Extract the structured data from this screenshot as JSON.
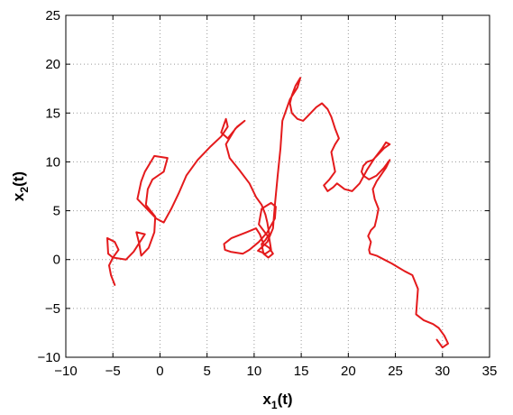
{
  "chart_data": {
    "type": "line",
    "title": "",
    "xlabel": "x",
    "xlabel_subscript": "1",
    "xlabel_suffix": "(t)",
    "ylabel": "x",
    "ylabel_subscript": "2",
    "ylabel_suffix": "(t)",
    "xlim": [
      -10,
      35
    ],
    "ylim": [
      -10,
      25
    ],
    "xticks": [
      -10,
      -5,
      0,
      5,
      10,
      15,
      20,
      25,
      30,
      35
    ],
    "yticks": [
      -10,
      -5,
      0,
      5,
      10,
      15,
      20,
      25
    ],
    "grid": true,
    "line_color": "#e41a1c",
    "series": [
      {
        "x": [
          -4.8,
          -5.2,
          -5.4,
          -5.0,
          -4.4,
          -4.8,
          -5.6,
          -5.5,
          -5.0,
          -3.6,
          -2.8,
          -1.6,
          -2.5,
          -2.2,
          -2.0,
          -1.2,
          -0.6,
          -0.5,
          -1.5,
          -1.3,
          -0.8,
          0.4,
          0.8,
          -0.6,
          -1.6,
          -2.0,
          -2.4,
          -1.2,
          -0.4,
          0.4,
          1.2,
          2.0,
          2.8,
          4.0,
          5.4,
          6.5,
          7.2,
          7.0,
          6.5,
          7.2,
          8.2,
          9.0,
          8.0,
          7.0,
          7.4,
          8.4,
          9.5,
          10.2,
          10.8,
          11.2,
          11.4,
          11.6,
          11.2,
          10.8,
          11.0,
          11.5,
          12.0,
          11.6,
          11.0,
          10.6,
          10.2,
          9.2,
          7.6,
          6.8,
          6.9,
          7.5,
          8.8,
          9.5,
          10.5,
          11.4,
          12.2,
          12.3,
          11.8,
          10.8,
          10.5,
          11.6,
          11.8,
          11.2,
          10.4,
          11.4,
          12.0,
          12.2,
          12.5,
          12.8,
          13.0,
          13.8,
          14.6,
          14.9,
          14.4,
          14.0,
          13.8,
          14.0,
          14.6,
          15.2,
          15.8,
          16.6,
          17.2,
          17.8,
          18.2,
          18.6,
          19.0,
          18.6,
          18.2,
          18.4,
          18.6,
          18.0,
          17.4,
          17.8,
          18.4,
          18.8,
          19.6,
          20.4,
          21.2,
          22.0,
          22.8,
          23.6,
          24.0,
          24.4,
          23.8,
          23.2,
          22.6,
          22.0,
          21.6,
          21.4,
          21.6,
          22.2,
          23.0,
          23.8,
          24.4,
          24.0,
          23.0,
          22.6,
          22.8,
          23.2,
          23.0,
          22.8,
          22.4,
          22.1,
          22.4,
          22.2,
          22.3,
          23.0,
          23.8,
          24.6,
          25.3,
          26.0,
          26.8,
          27.4,
          27.2,
          28.0,
          29.0,
          29.6,
          30.2,
          30.6,
          30.0,
          29.4
        ],
        "y": [
          -2.6,
          -1.6,
          -0.6,
          0.2,
          1.0,
          1.8,
          2.2,
          0.6,
          0.2,
          0.0,
          0.8,
          2.6,
          2.8,
          1.6,
          0.4,
          1.2,
          2.8,
          4.4,
          5.6,
          7.2,
          8.2,
          9.0,
          10.4,
          10.6,
          9.0,
          8.0,
          6.2,
          5.0,
          4.2,
          3.8,
          5.2,
          6.8,
          8.6,
          10.2,
          11.6,
          12.6,
          13.6,
          14.4,
          13.0,
          12.4,
          13.6,
          14.2,
          13.4,
          11.8,
          10.4,
          9.2,
          7.8,
          6.4,
          5.6,
          4.6,
          3.8,
          2.6,
          2.0,
          1.6,
          0.6,
          0.2,
          0.6,
          1.2,
          1.6,
          2.6,
          3.2,
          2.8,
          2.2,
          1.6,
          1.0,
          0.8,
          0.6,
          1.0,
          1.8,
          2.8,
          4.2,
          5.4,
          5.8,
          5.2,
          3.6,
          2.2,
          1.0,
          0.6,
          0.9,
          1.8,
          3.2,
          5.6,
          8.6,
          11.4,
          14.2,
          16.4,
          17.6,
          18.6,
          17.8,
          16.8,
          16.0,
          15.0,
          14.4,
          14.2,
          14.8,
          15.6,
          16.0,
          15.4,
          14.6,
          13.4,
          12.4,
          11.8,
          11.0,
          10.0,
          9.0,
          8.2,
          7.6,
          7.0,
          7.4,
          7.8,
          7.2,
          7.0,
          7.8,
          9.2,
          10.4,
          11.4,
          12.0,
          11.8,
          11.4,
          10.8,
          10.2,
          10.0,
          9.6,
          9.0,
          8.6,
          8.2,
          8.6,
          9.4,
          10.2,
          9.4,
          8.0,
          7.2,
          6.2,
          5.2,
          4.2,
          3.4,
          3.0,
          2.4,
          1.8,
          1.0,
          0.6,
          0.4,
          0.0,
          -0.4,
          -0.8,
          -1.2,
          -1.6,
          -3.0,
          -5.6,
          -6.2,
          -6.6,
          -7.0,
          -7.8,
          -8.6,
          -9.0,
          -8.2
        ]
      }
    ]
  }
}
